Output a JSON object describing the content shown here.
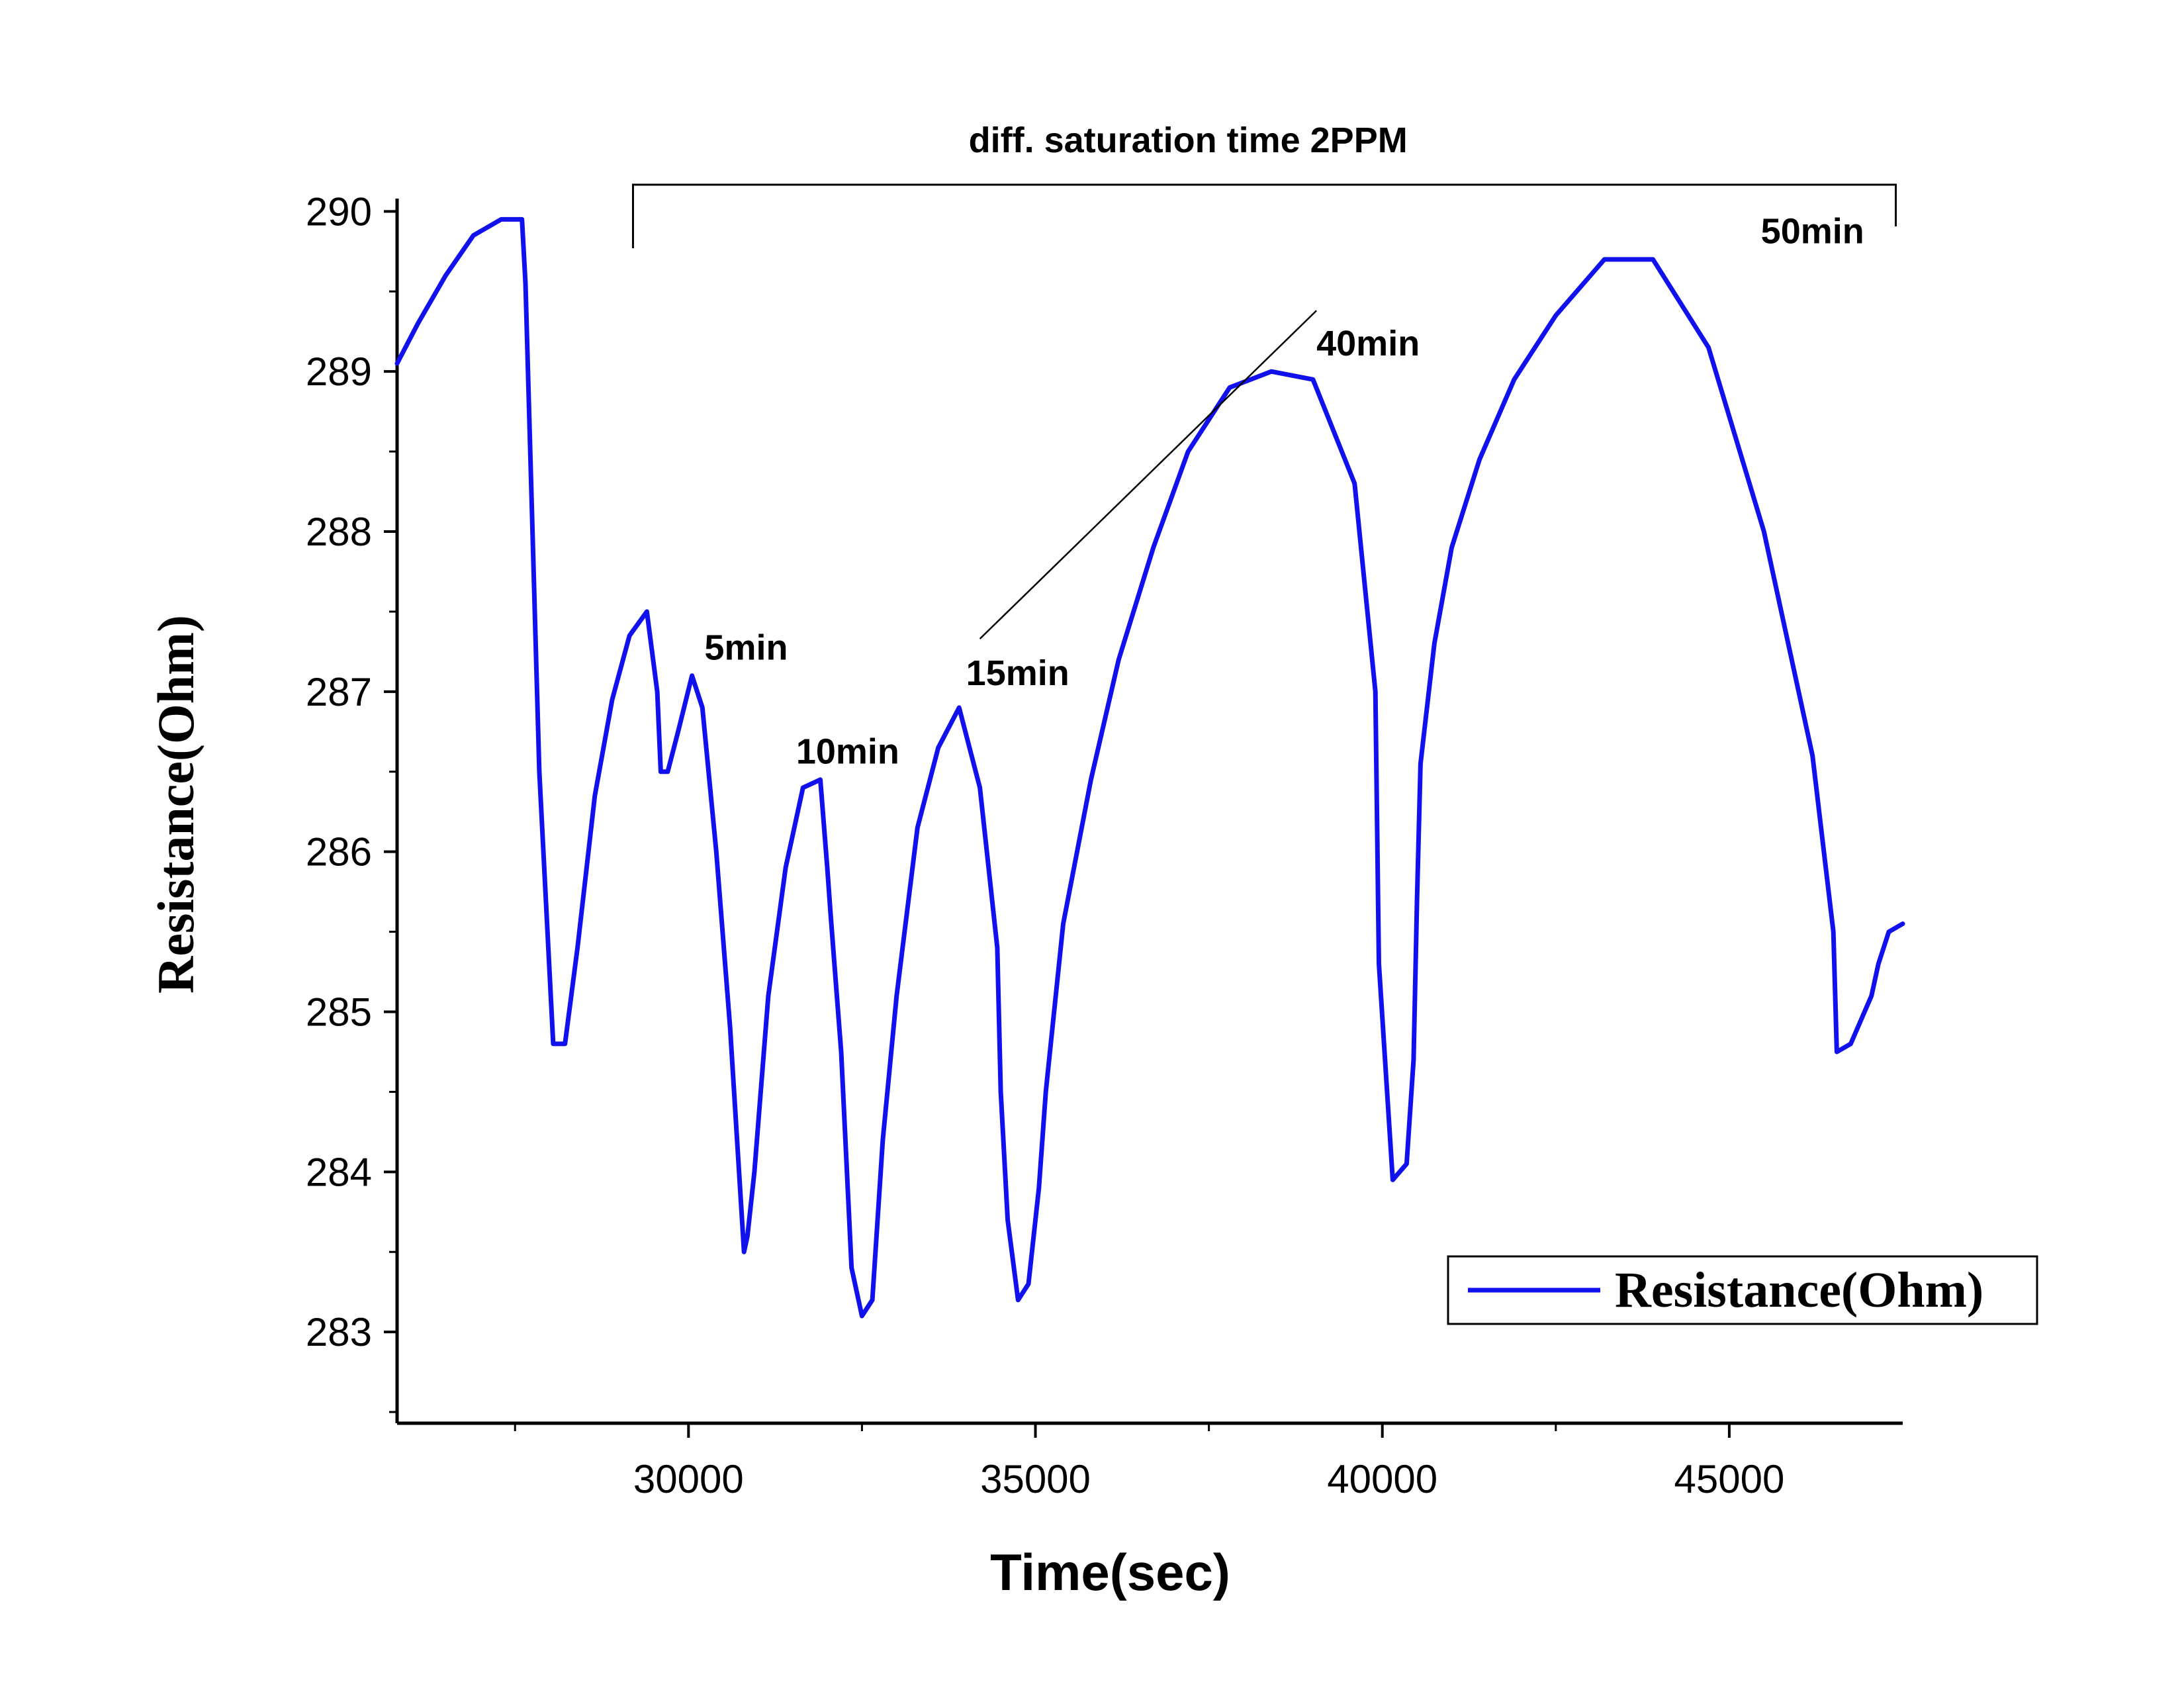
{
  "chart_data": {
    "type": "line",
    "xlabel": "Time(sec)",
    "ylabel": "Resistance(Ohm)",
    "xlim": [
      25800,
      47500
    ],
    "ylim": [
      282.43,
      290.08
    ],
    "x_ticks": [
      30000,
      35000,
      40000,
      45000
    ],
    "x_tick_labels": [
      "30000",
      "35000",
      "40000",
      "45000"
    ],
    "y_ticks": [
      283,
      284,
      285,
      286,
      287,
      288,
      289,
      290
    ],
    "y_tick_labels": [
      "283",
      "284",
      "285",
      "286",
      "287",
      "288",
      "289",
      "290"
    ],
    "grid": false,
    "legend_position": "bottom-right",
    "series": [
      {
        "name": "Resistance(Ohm)",
        "color": "#1111ee",
        "x": [
          25800,
          26100,
          26500,
          26900,
          27300,
          27600,
          27650,
          27850,
          28050,
          28220,
          28400,
          28650,
          28900,
          29150,
          29400,
          29550,
          29600,
          29700,
          29850,
          30050,
          30200,
          30400,
          30600,
          30800,
          30850,
          30950,
          31150,
          31400,
          31650,
          31900,
          32000,
          32050,
          32200,
          32350,
          32500,
          32650,
          32800,
          33000,
          33300,
          33600,
          33900,
          34200,
          34450,
          34500,
          34600,
          34750,
          34900,
          35050,
          35150,
          35400,
          35800,
          36200,
          36700,
          37200,
          37800,
          38400,
          39000,
          39600,
          39900,
          39950,
          40150,
          40350,
          40450,
          40500,
          40550,
          40750,
          41000,
          41400,
          41900,
          42500,
          43200,
          43900,
          44700,
          45500,
          46200,
          46500,
          46550,
          46750,
          46950,
          47050,
          47150,
          47300,
          47500
        ],
        "y": [
          289.05,
          289.3,
          289.6,
          289.85,
          289.95,
          289.95,
          289.55,
          286.5,
          284.8,
          284.8,
          285.4,
          286.35,
          286.95,
          287.35,
          287.5,
          287.0,
          286.5,
          286.5,
          286.75,
          287.1,
          286.9,
          286.0,
          284.9,
          283.5,
          283.6,
          284.0,
          285.1,
          285.9,
          286.4,
          286.45,
          285.9,
          285.6,
          284.75,
          283.4,
          283.1,
          283.2,
          284.2,
          285.1,
          286.15,
          286.65,
          286.9,
          286.4,
          285.4,
          284.5,
          283.7,
          283.2,
          283.3,
          283.9,
          284.5,
          285.55,
          286.45,
          287.2,
          287.9,
          288.5,
          288.9,
          289.0,
          288.95,
          288.3,
          287.0,
          285.3,
          283.95,
          284.05,
          284.7,
          285.7,
          286.55,
          287.3,
          287.9,
          288.45,
          288.95,
          289.35,
          289.7,
          289.7,
          289.15,
          288.0,
          286.6,
          285.5,
          284.75,
          284.8,
          285.0,
          285.1,
          285.3,
          285.5,
          285.55
        ]
      }
    ],
    "annotations": [
      {
        "label": "diff. saturation time 2PPM"
      },
      {
        "label": "5min"
      },
      {
        "label": "10min"
      },
      {
        "label": "15min"
      },
      {
        "label": "40min"
      },
      {
        "label": "50min"
      }
    ]
  }
}
